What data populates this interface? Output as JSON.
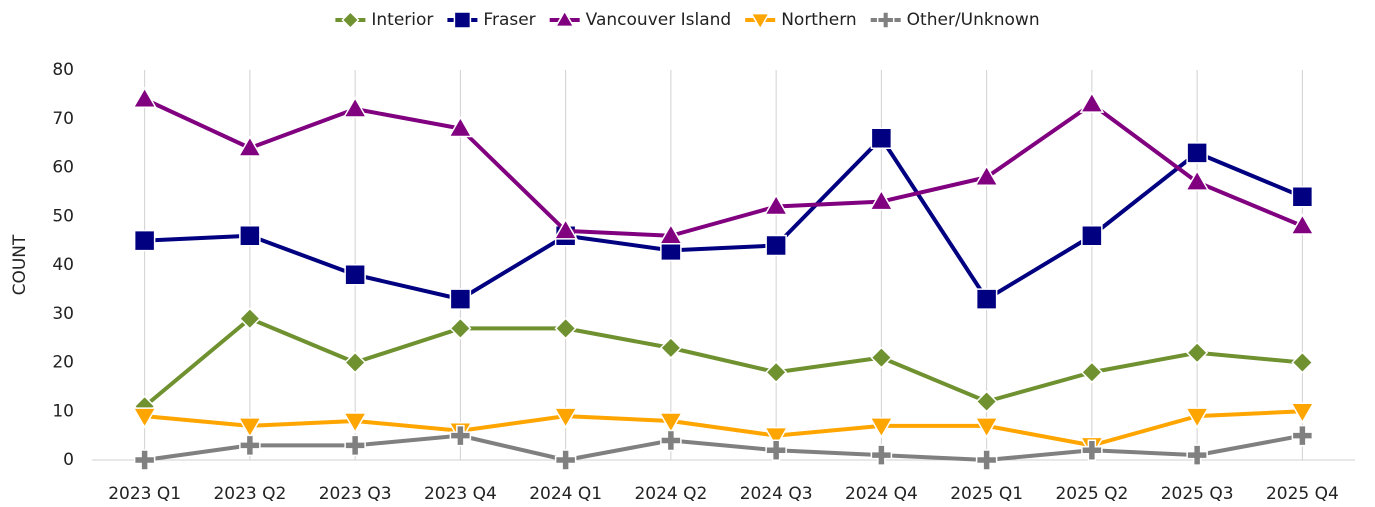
{
  "chart_data": {
    "type": "line",
    "y_label": "COUNT",
    "categories": [
      "2023 Q1",
      "2023 Q2",
      "2023 Q3",
      "2023 Q4",
      "2024 Q1",
      "2024 Q2",
      "2024 Q3",
      "2024 Q4",
      "2025 Q1",
      "2025 Q2",
      "2025 Q3",
      "2025 Q4"
    ],
    "series": [
      {
        "name": "Interior",
        "color": "#6f9130",
        "marker": "diamond",
        "values": [
          11,
          29,
          20,
          27,
          27,
          23,
          18,
          21,
          12,
          18,
          22,
          20
        ]
      },
      {
        "name": "Fraser",
        "color": "#000080",
        "marker": "square",
        "values": [
          45,
          46,
          38,
          33,
          46,
          43,
          44,
          66,
          33,
          46,
          63,
          54
        ]
      },
      {
        "name": "Vancouver Island",
        "color": "#800080",
        "marker": "triangle-up",
        "values": [
          74,
          64,
          72,
          68,
          47,
          46,
          52,
          53,
          58,
          73,
          57,
          48
        ]
      },
      {
        "name": "Northern",
        "color": "#ffa500",
        "marker": "triangle-down",
        "values": [
          9,
          7,
          8,
          6,
          9,
          8,
          5,
          7,
          7,
          3,
          9,
          10
        ]
      },
      {
        "name": "Other/Unknown",
        "color": "#808080",
        "marker": "plus",
        "values": [
          0,
          3,
          3,
          5,
          0,
          4,
          2,
          1,
          0,
          2,
          1,
          5
        ]
      }
    ],
    "ylim": [
      0,
      80
    ],
    "yticks": [
      0,
      10,
      20,
      30,
      40,
      50,
      60,
      70,
      80
    ],
    "legend": "top",
    "grid": "vertical"
  }
}
